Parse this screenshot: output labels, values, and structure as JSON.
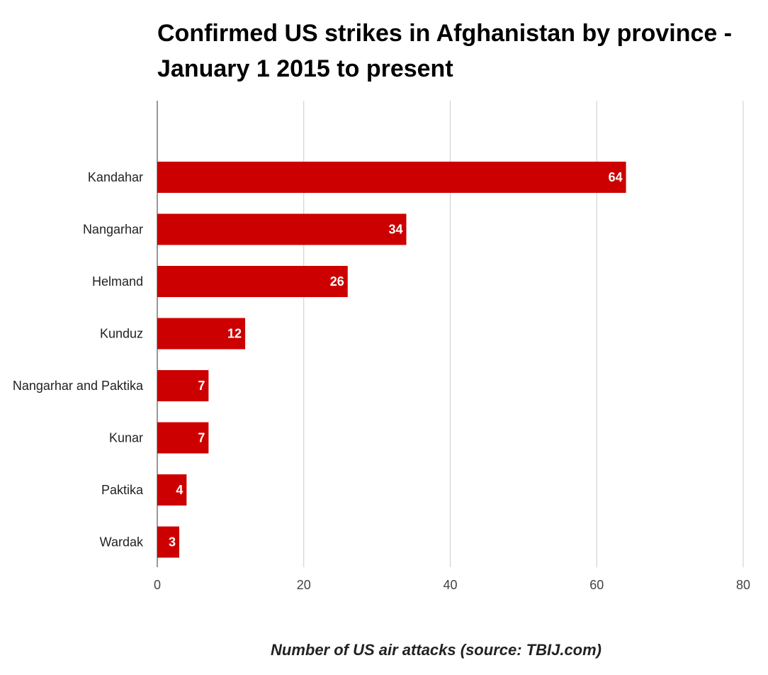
{
  "chart_data": {
    "type": "bar",
    "orientation": "horizontal",
    "title": "Confirmed US strikes in Afghanistan by province - January 1 2015 to present",
    "categories": [
      "Kandahar",
      "Nangarhar",
      "Helmand",
      "Kunduz",
      "Nangarhar and Paktika",
      "Kunar",
      "Paktika",
      "Wardak"
    ],
    "values": [
      64,
      34,
      26,
      12,
      7,
      7,
      4,
      3
    ],
    "xlabel": "Number of US air attacks (source: TBIJ.com)",
    "ylabel": "",
    "xlim": [
      0,
      80
    ],
    "xticks": [
      0,
      20,
      40,
      60,
      80
    ],
    "grid": true,
    "data_labels": true,
    "colors": {
      "bar": "#cc0000",
      "grid": "#cccccc",
      "axis": "#333333"
    }
  }
}
